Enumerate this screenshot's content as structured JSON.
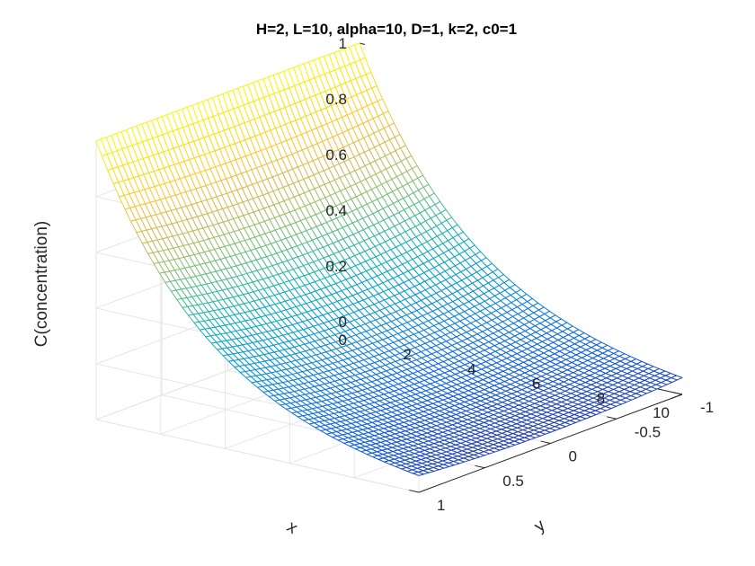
{
  "chart_data": {
    "type": "surface",
    "title": "H=2, L=10, alpha=10, D=1, k=2, c0=1",
    "xlabel": "x",
    "ylabel": "y",
    "zlabel": "C(concentration)",
    "xlim": [
      0,
      10
    ],
    "ylim": [
      -1,
      1
    ],
    "zlim": [
      0,
      1
    ],
    "x_ticks": [
      "0",
      "2",
      "4",
      "6",
      "8",
      "10"
    ],
    "y_ticks": [
      "-1",
      "-0.5",
      "0",
      "0.5",
      "1"
    ],
    "z_ticks": [
      "0",
      "0.2",
      "0.4",
      "0.6",
      "0.8",
      "1"
    ],
    "grid": true,
    "colormap": "parula",
    "surface": {
      "x_range": [
        0,
        10
      ],
      "y_range": [
        -1,
        1
      ],
      "z_at_x0": 1.0,
      "z_at_x10_center": 0.04,
      "z_at_x10_edge": 0.06,
      "decay_rate_center": 0.32,
      "decay_rate_edge": 0.28
    }
  }
}
